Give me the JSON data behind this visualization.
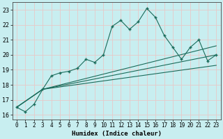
{
  "xlabel": "Humidex (Indice chaleur)",
  "ylabel": "",
  "xlim": [
    -0.5,
    23.5
  ],
  "ylim": [
    15.7,
    23.5
  ],
  "yticks": [
    16,
    17,
    18,
    19,
    20,
    21,
    22,
    23
  ],
  "xticks": [
    0,
    1,
    2,
    3,
    4,
    5,
    6,
    7,
    8,
    9,
    10,
    11,
    12,
    13,
    14,
    15,
    16,
    17,
    18,
    19,
    20,
    21,
    22,
    23
  ],
  "bg_color": "#c8eef0",
  "grid_color": "#e8c8c8",
  "line_color": "#1a6b5a",
  "series1_x": [
    0,
    1,
    2,
    3,
    4,
    5,
    6,
    7,
    8,
    9,
    10,
    11,
    12,
    13,
    14,
    15,
    16,
    17,
    18,
    19,
    20,
    21,
    22,
    23
  ],
  "series1_y": [
    16.5,
    16.2,
    16.7,
    17.7,
    18.6,
    18.8,
    18.9,
    19.1,
    19.7,
    19.5,
    20.0,
    21.9,
    22.3,
    21.7,
    22.2,
    23.1,
    22.5,
    21.3,
    20.5,
    19.7,
    20.5,
    21.0,
    19.6,
    20.0
  ],
  "straight_lines": [
    {
      "x": [
        0,
        3,
        23
      ],
      "y": [
        16.5,
        17.7,
        20.0
      ]
    },
    {
      "x": [
        0,
        3,
        23
      ],
      "y": [
        16.5,
        17.7,
        19.3
      ]
    },
    {
      "x": [
        0,
        3,
        23
      ],
      "y": [
        16.5,
        17.7,
        20.6
      ]
    }
  ]
}
